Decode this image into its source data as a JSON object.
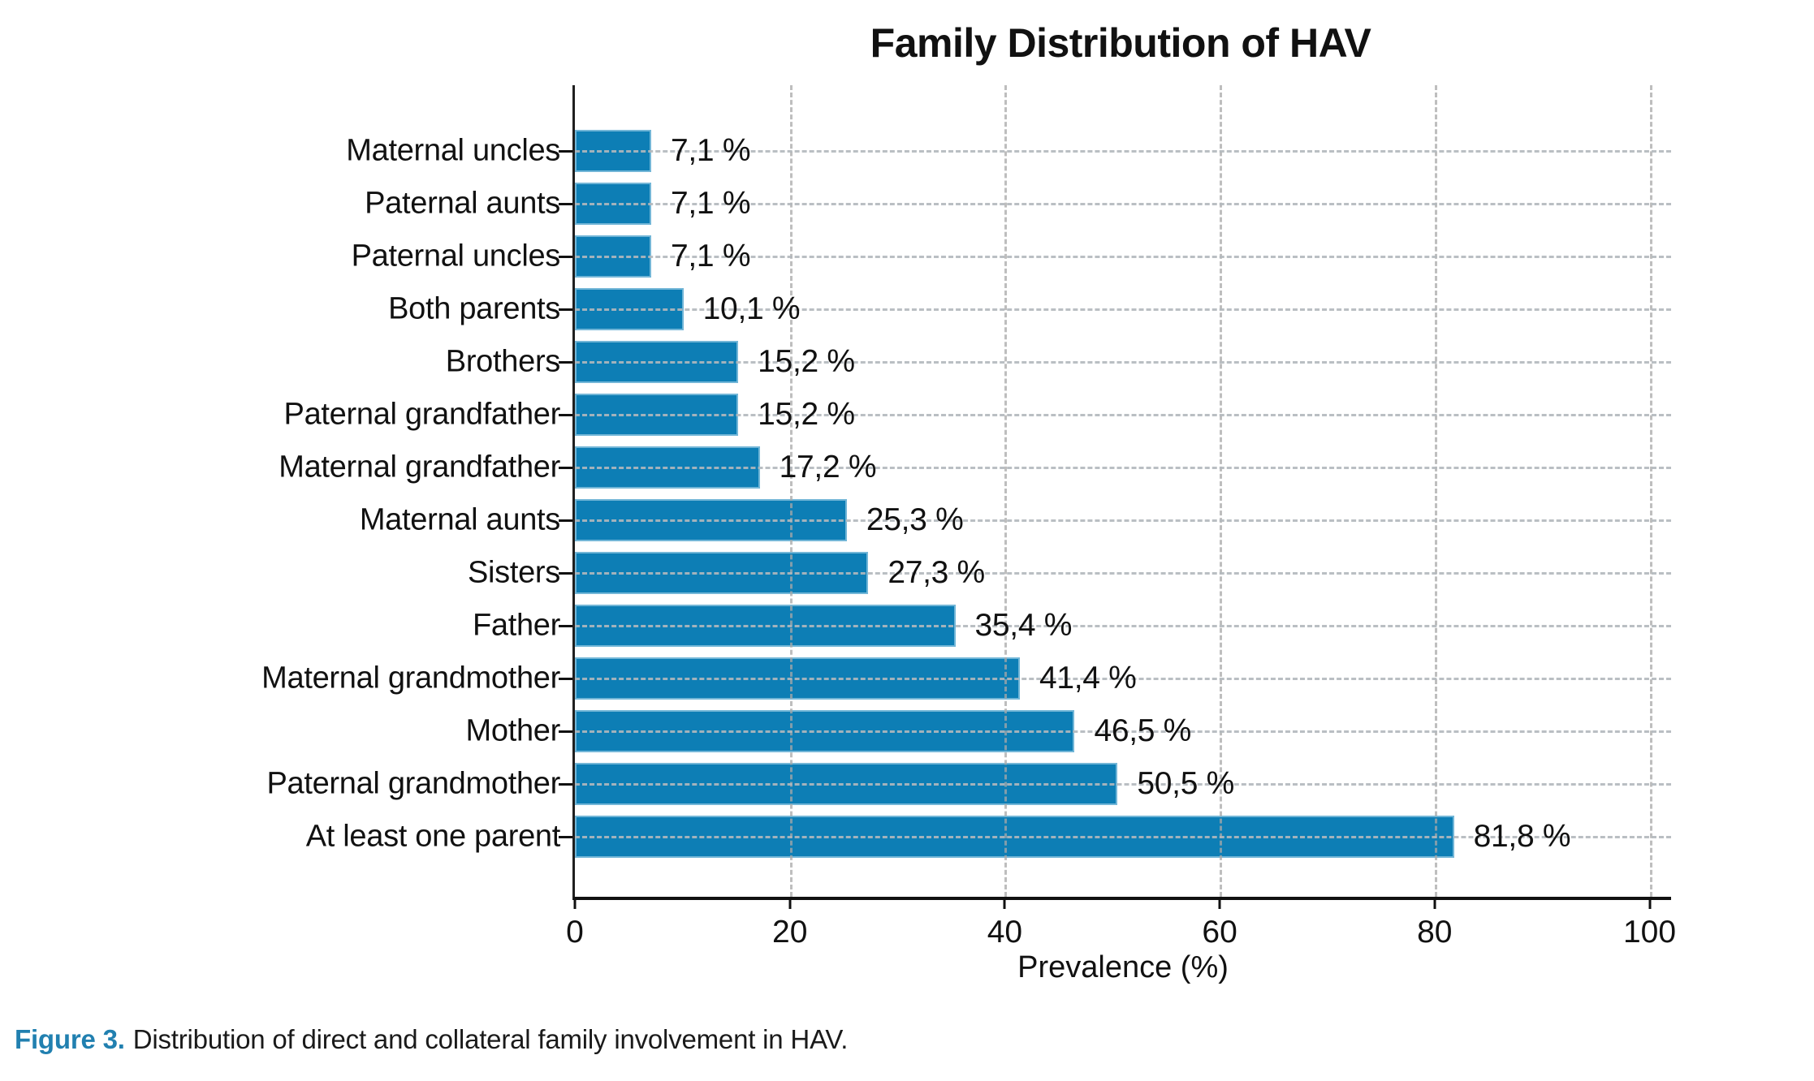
{
  "chart_data": {
    "type": "bar",
    "orientation": "horizontal",
    "title": "Family Distribution of HAV",
    "xlabel": "Prevalence (%)",
    "categories": [
      "Maternal uncles",
      "Paternal aunts",
      "Paternal uncles",
      "Both parents",
      "Brothers",
      "Paternal grandfather",
      "Maternal grandfather",
      "Maternal aunts",
      "Sisters",
      "Father",
      "Maternal grandmother",
      "Mother",
      "Paternal grandmother",
      "At least one parent"
    ],
    "values": [
      7.1,
      7.1,
      7.1,
      10.1,
      15.2,
      15.2,
      17.2,
      25.3,
      27.3,
      35.4,
      41.4,
      46.5,
      50.5,
      81.8
    ],
    "value_labels": [
      "7,1 %",
      "7,1 %",
      "7,1 %",
      "10,1 %",
      "15,2 %",
      "15,2 %",
      "17,2 %",
      "25,3 %",
      "27,3 %",
      "35,4 %",
      "41,4 %",
      "46,5 %",
      "50,5 %",
      "81,8 %"
    ],
    "x_ticks": [
      0,
      20,
      40,
      60,
      80,
      100
    ],
    "xlim": [
      0,
      102
    ],
    "grid": "dashed",
    "legend": "none",
    "bar_color": "#0d7eb5",
    "grid_color": "#b4b4b4",
    "axis_color": "#111111"
  },
  "caption": {
    "prefix": "Figure 3.",
    "text": "Distribution of direct and collateral family involvement in HAV.",
    "accent_color": "#2180b0"
  }
}
